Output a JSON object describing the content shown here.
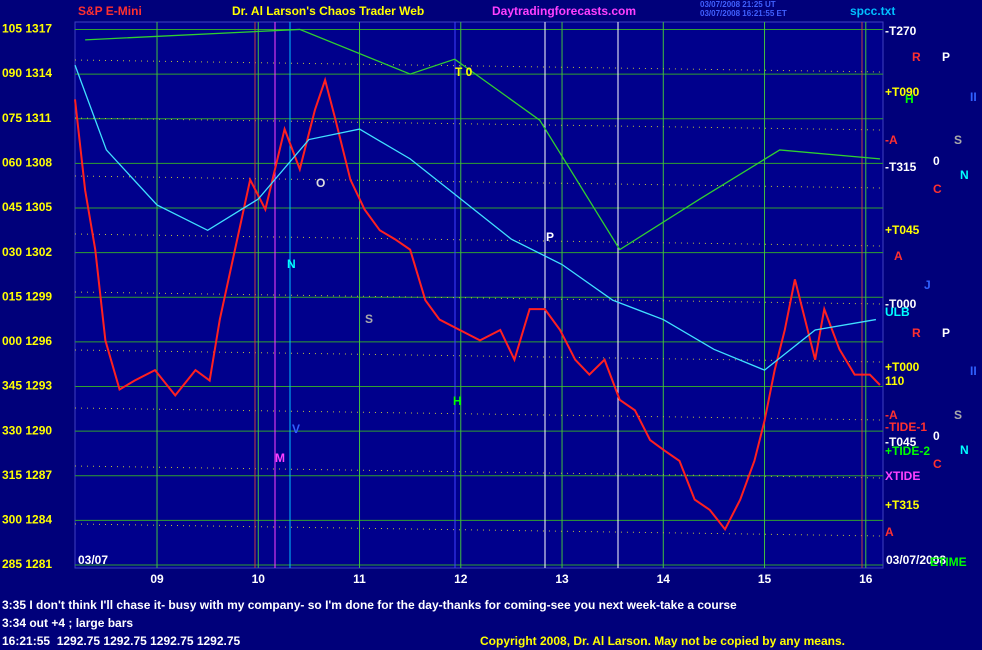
{
  "header": {
    "title": "S&P E-Mini",
    "site": "Dr. Al Larson's Chaos Trader Web",
    "url": "Daytradingforecasts.com",
    "time_ut": "03/07/2008 21:25 UT",
    "time_et": "03/07/2008 16:21:55 ET",
    "file": "spcc.txt"
  },
  "chart_data": {
    "type": "line",
    "xlim": [
      8.19,
      16.17
    ],
    "xticks": [
      {
        "value": 9,
        "label": "09"
      },
      {
        "value": 10,
        "label": "10"
      },
      {
        "value": 11,
        "label": "11"
      },
      {
        "value": 12,
        "label": "12"
      },
      {
        "value": 13,
        "label": "13"
      },
      {
        "value": 14,
        "label": "14"
      },
      {
        "value": 15,
        "label": "15"
      },
      {
        "value": 16,
        "label": "16"
      }
    ],
    "ylim": [
      1280.8,
      1317.5
    ],
    "yticks": [
      {
        "value": 1281,
        "label": "285 1281"
      },
      {
        "value": 1284,
        "label": "300 1284"
      },
      {
        "value": 1287,
        "label": "315 1287"
      },
      {
        "value": 1290,
        "label": "330 1290"
      },
      {
        "value": 1293,
        "label": "345 1293"
      },
      {
        "value": 1296,
        "label": "000 1296"
      },
      {
        "value": 1299,
        "label": "015 1299"
      },
      {
        "value": 1302,
        "label": "030 1302"
      },
      {
        "value": 1305,
        "label": "045 1305"
      },
      {
        "value": 1308,
        "label": "060 1308"
      },
      {
        "value": 1311,
        "label": "075 1311"
      },
      {
        "value": 1314,
        "label": "090 1314"
      },
      {
        "value": 1317,
        "label": "105 1317"
      }
    ],
    "grid": true,
    "series": [
      {
        "color": "#ff2020",
        "x": [
          8.19,
          8.29,
          8.39,
          8.49,
          8.63,
          8.78,
          8.98,
          9.18,
          9.38,
          9.52,
          9.62,
          9.77,
          9.92,
          10.07,
          10.26,
          10.41,
          10.56,
          10.66,
          10.76,
          10.91,
          11.05,
          11.2,
          11.35,
          11.5,
          11.65,
          11.79,
          11.99,
          12.19,
          12.39,
          12.53,
          12.68,
          12.83,
          12.98,
          13.13,
          13.27,
          13.42,
          13.57,
          13.72,
          13.87,
          14.01,
          14.16,
          14.31,
          14.46,
          14.61,
          14.76,
          14.9,
          15.0,
          15.1,
          15.2,
          15.3,
          15.4,
          15.5,
          15.59,
          15.74,
          15.89,
          16.04,
          16.14
        ],
        "values": [
          1312.3,
          1306.2,
          1302.2,
          1296.1,
          1292.8,
          1293.4,
          1294.1,
          1292.4,
          1294.1,
          1293.4,
          1297.5,
          1302.2,
          1306.9,
          1304.9,
          1310.3,
          1307.6,
          1311.6,
          1313.6,
          1311.0,
          1306.9,
          1304.9,
          1303.5,
          1302.9,
          1302.2,
          1298.8,
          1297.5,
          1296.8,
          1296.1,
          1296.8,
          1294.8,
          1298.2,
          1298.2,
          1296.8,
          1294.8,
          1293.8,
          1294.8,
          1292.1,
          1291.4,
          1289.4,
          1288.7,
          1288.0,
          1285.4,
          1284.7,
          1283.4,
          1285.4,
          1288.0,
          1290.7,
          1294.1,
          1296.8,
          1300.2,
          1297.5,
          1294.8,
          1298.2,
          1295.5,
          1293.8,
          1293.8,
          1293.1
        ]
      },
      {
        "color": "#40e0ff",
        "x": [
          8.19,
          8.5,
          9.0,
          9.5,
          10.0,
          10.5,
          11.0,
          11.5,
          12.0,
          12.5,
          13.0,
          13.5,
          14.0,
          14.5,
          15.0,
          15.5,
          16.1
        ],
        "values": [
          1314.6,
          1308.9,
          1305.2,
          1303.5,
          1305.6,
          1309.6,
          1310.3,
          1308.3,
          1305.6,
          1302.9,
          1301.2,
          1298.8,
          1297.5,
          1295.5,
          1294.1,
          1296.8,
          1297.5
        ]
      },
      {
        "color": "#30d030",
        "x": [
          8.29,
          10.41,
          11.5,
          11.94,
          12.78,
          13.57,
          14.36,
          15.15,
          16.14
        ],
        "values": [
          1316.3,
          1317.0,
          1314.0,
          1315.0,
          1310.9,
          1302.2,
          1305.6,
          1308.9,
          1308.3
        ]
      }
    ],
    "start_date": "03/07",
    "end_date": "03/07/2008",
    "annotations": [
      "T 0",
      "O",
      "N",
      "S",
      "P",
      "H",
      "V",
      "M"
    ],
    "level_labels": [
      "-T270",
      "+T090",
      "-A",
      "-T315",
      "+T045",
      "-T000",
      "ULB",
      "+T000",
      "110",
      "-A",
      "-TIDE-1",
      "-T045",
      "+TIDE-2",
      "XTIDE",
      "+T315",
      "A",
      "ETIME"
    ],
    "marker_letters": [
      "R",
      "P",
      "H",
      "II",
      "S",
      "0",
      "N",
      "C",
      "A",
      "J",
      "R",
      "P",
      "II",
      "S",
      "0",
      "N",
      "C"
    ]
  },
  "footer": {
    "notes": [
      "3:35 I don't think I'll chase it- busy with my company- so I'm done for the day-thanks for coming-see you next week-take a course",
      "3:34 out +4 ; large bars"
    ],
    "quote": "16:21:55  1292.75 1292.75 1292.75 1292.75",
    "copyright": "Copyright 2008, Dr. Al Larson. May not be copied by any means."
  }
}
